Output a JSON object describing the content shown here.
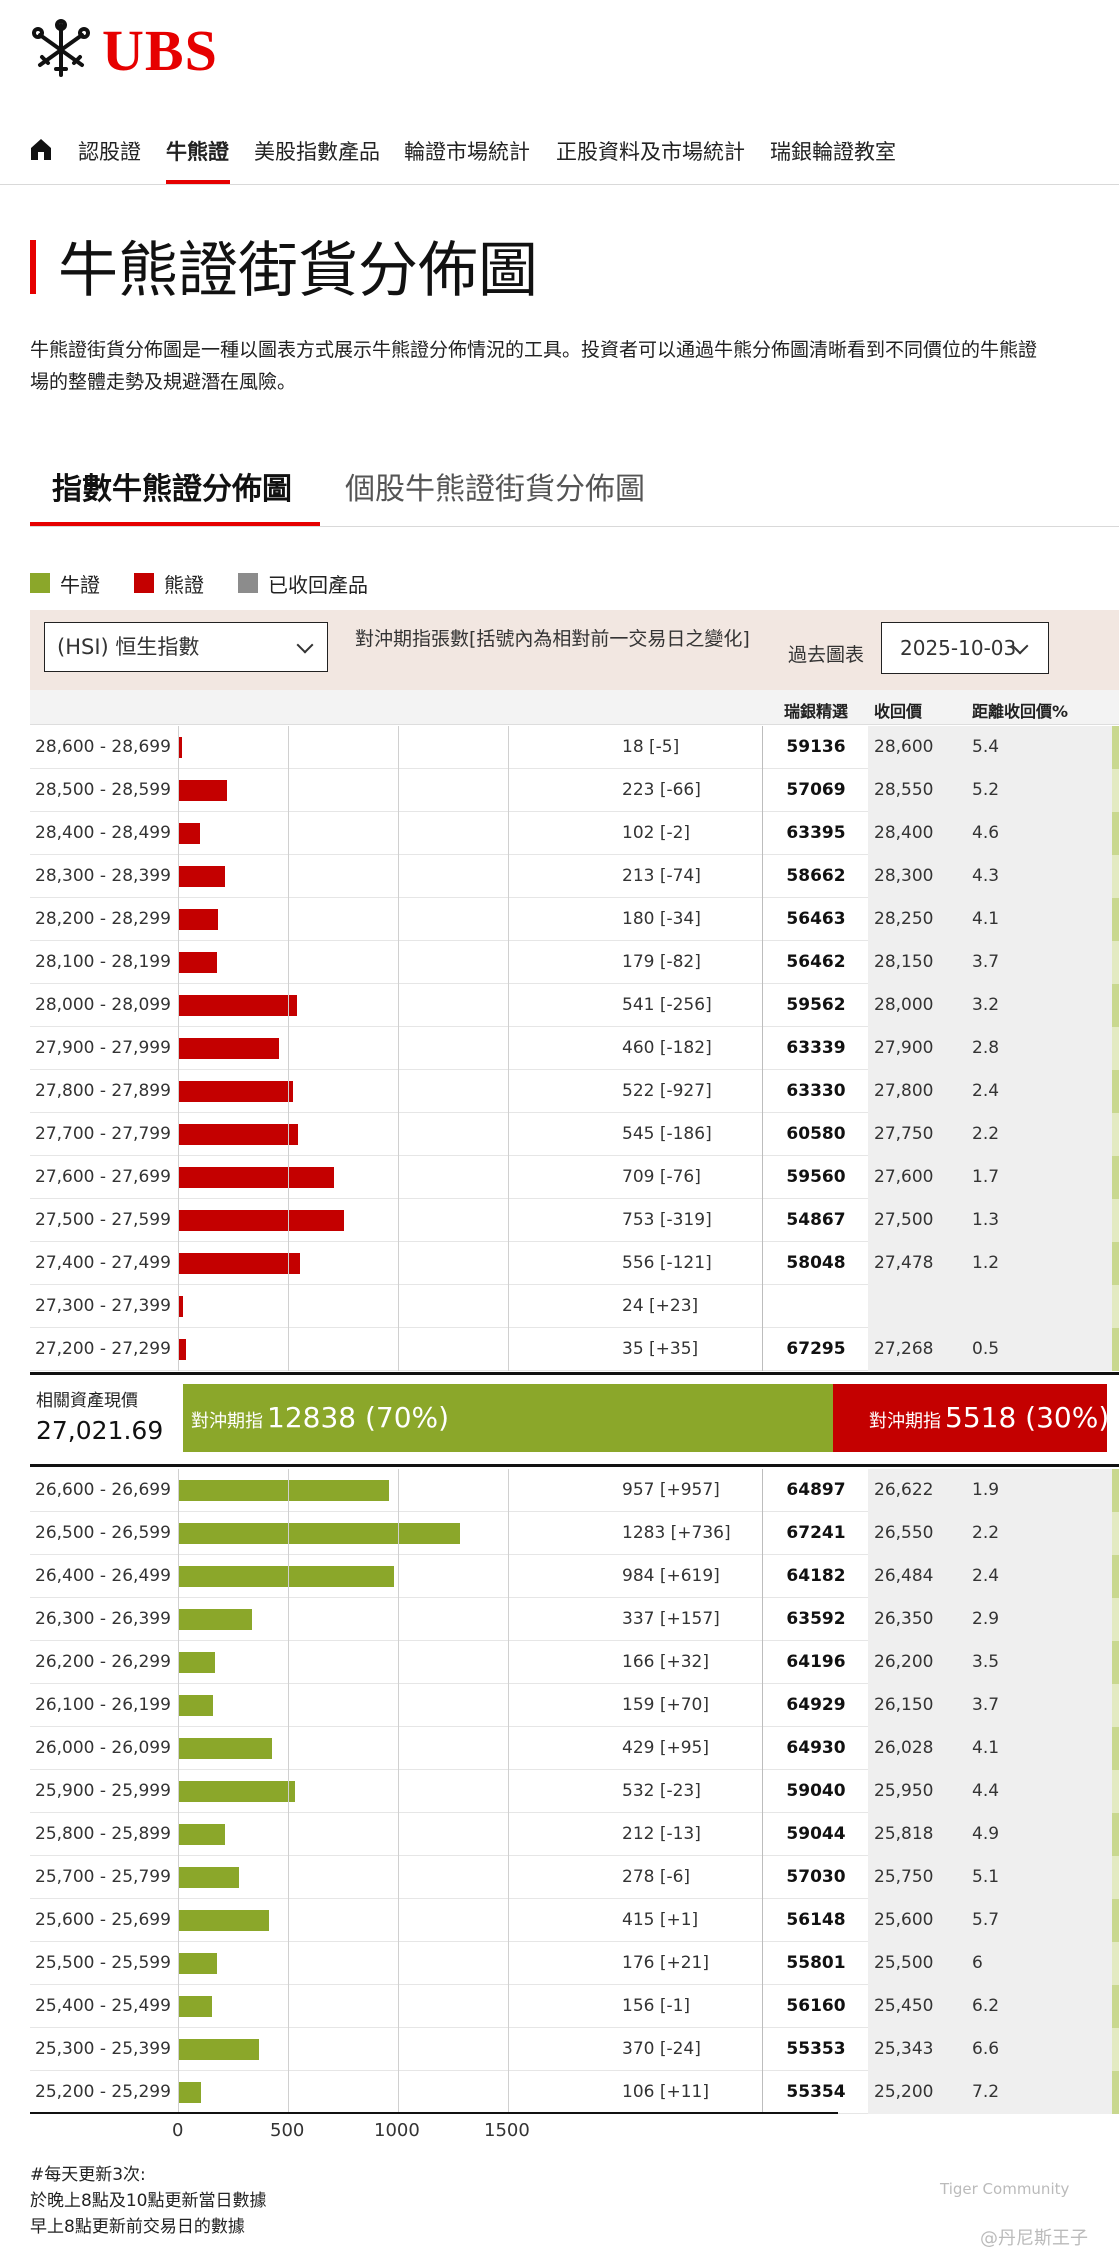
{
  "brand": {
    "name": "UBS",
    "color": "#e60000"
  },
  "nav": {
    "items": [
      "認股證",
      "牛熊證",
      "美股指數產品",
      "輪證市場統計",
      "正股資料及市場統計",
      "瑞銀輪證教室"
    ],
    "active": "牛熊證"
  },
  "page": {
    "title": "牛熊證街貨分佈圖",
    "description_line1": "牛熊證街貨分佈圖是一種以圖表方式展示牛熊證分佈情況的工具。投資者可以通過牛熊分佈圖清晰看到不同價位的牛熊證",
    "description_line2": "場的整體走勢及規避潛在風險。"
  },
  "tabs": {
    "active": "指數牛熊證分佈圖",
    "inactive": "個股牛熊證街貨分佈圖"
  },
  "legend": {
    "bull": "牛證",
    "bear": "熊證",
    "called": "已收回產品"
  },
  "colors": {
    "bull": "#8ba72a",
    "bear": "#c40000",
    "called": "#8c8c8c"
  },
  "filter": {
    "index_select": "(HSI) 恒生指數",
    "label": "對沖期指張數[括號內為相對前一交易日之變化]",
    "history_label": "過去圖表",
    "date_select": "2025-10-03"
  },
  "table_headers": {
    "code": "瑞銀精選",
    "call_price": "收回價",
    "distance": "距離收回價%"
  },
  "chart_data": {
    "type": "bar",
    "orientation": "horizontal",
    "xlim": [
      0,
      1500
    ],
    "x_ticks": [
      "0",
      "500",
      "1000",
      "1500"
    ],
    "bear_rows": [
      {
        "range": "28,600 - 28,699",
        "value": 18,
        "label": "18 [-5]",
        "code": "59136",
        "call": "28,600",
        "dist": "5.4"
      },
      {
        "range": "28,500 - 28,599",
        "value": 223,
        "label": "223 [-66]",
        "code": "57069",
        "call": "28,550",
        "dist": "5.2"
      },
      {
        "range": "28,400 - 28,499",
        "value": 102,
        "label": "102 [-2]",
        "code": "63395",
        "call": "28,400",
        "dist": "4.6"
      },
      {
        "range": "28,300 - 28,399",
        "value": 213,
        "label": "213 [-74]",
        "code": "58662",
        "call": "28,300",
        "dist": "4.3"
      },
      {
        "range": "28,200 - 28,299",
        "value": 180,
        "label": "180 [-34]",
        "code": "56463",
        "call": "28,250",
        "dist": "4.1"
      },
      {
        "range": "28,100 - 28,199",
        "value": 179,
        "label": "179 [-82]",
        "code": "56462",
        "call": "28,150",
        "dist": "3.7"
      },
      {
        "range": "28,000 - 28,099",
        "value": 541,
        "label": "541 [-256]",
        "code": "59562",
        "call": "28,000",
        "dist": "3.2"
      },
      {
        "range": "27,900 - 27,999",
        "value": 460,
        "label": "460 [-182]",
        "code": "63339",
        "call": "27,900",
        "dist": "2.8"
      },
      {
        "range": "27,800 - 27,899",
        "value": 522,
        "label": "522 [-927]",
        "code": "63330",
        "call": "27,800",
        "dist": "2.4"
      },
      {
        "range": "27,700 - 27,799",
        "value": 545,
        "label": "545 [-186]",
        "code": "60580",
        "call": "27,750",
        "dist": "2.2"
      },
      {
        "range": "27,600 - 27,699",
        "value": 709,
        "label": "709 [-76]",
        "code": "59560",
        "call": "27,600",
        "dist": "1.7"
      },
      {
        "range": "27,500 - 27,599",
        "value": 753,
        "label": "753 [-319]",
        "code": "54867",
        "call": "27,500",
        "dist": "1.3"
      },
      {
        "range": "27,400 - 27,499",
        "value": 556,
        "label": "556 [-121]",
        "code": "58048",
        "call": "27,478",
        "dist": "1.2"
      },
      {
        "range": "27,300 - 27,399",
        "value": 24,
        "label": "24 [+23]",
        "code": "",
        "call": "",
        "dist": ""
      },
      {
        "range": "27,200 - 27,299",
        "value": 35,
        "label": "35 [+35]",
        "code": "67295",
        "call": "27,268",
        "dist": "0.5"
      }
    ],
    "bull_rows": [
      {
        "range": "26,600 - 26,699",
        "value": 957,
        "label": "957 [+957]",
        "code": "64897",
        "call": "26,622",
        "dist": "1.9"
      },
      {
        "range": "26,500 - 26,599",
        "value": 1283,
        "label": "1283 [+736]",
        "code": "67241",
        "call": "26,550",
        "dist": "2.2"
      },
      {
        "range": "26,400 - 26,499",
        "value": 984,
        "label": "984 [+619]",
        "code": "64182",
        "call": "26,484",
        "dist": "2.4"
      },
      {
        "range": "26,300 - 26,399",
        "value": 337,
        "label": "337 [+157]",
        "code": "63592",
        "call": "26,350",
        "dist": "2.9"
      },
      {
        "range": "26,200 - 26,299",
        "value": 166,
        "label": "166 [+32]",
        "code": "64196",
        "call": "26,200",
        "dist": "3.5"
      },
      {
        "range": "26,100 - 26,199",
        "value": 159,
        "label": "159 [+70]",
        "code": "64929",
        "call": "26,150",
        "dist": "3.7"
      },
      {
        "range": "26,000 - 26,099",
        "value": 429,
        "label": "429 [+95]",
        "code": "64930",
        "call": "26,028",
        "dist": "4.1"
      },
      {
        "range": "25,900 - 25,999",
        "value": 532,
        "label": "532 [-23]",
        "code": "59040",
        "call": "25,950",
        "dist": "4.4"
      },
      {
        "range": "25,800 - 25,899",
        "value": 212,
        "label": "212 [-13]",
        "code": "59044",
        "call": "25,818",
        "dist": "4.9"
      },
      {
        "range": "25,700 - 25,799",
        "value": 278,
        "label": "278 [-6]",
        "code": "57030",
        "call": "25,750",
        "dist": "5.1"
      },
      {
        "range": "25,600 - 25,699",
        "value": 415,
        "label": "415 [+1]",
        "code": "56148",
        "call": "25,600",
        "dist": "5.7"
      },
      {
        "range": "25,500 - 25,599",
        "value": 176,
        "label": "176 [+21]",
        "code": "55801",
        "call": "25,500",
        "dist": "6"
      },
      {
        "range": "25,400 - 25,499",
        "value": 156,
        "label": "156 [-1]",
        "code": "56160",
        "call": "25,450",
        "dist": "6.2"
      },
      {
        "range": "25,300 - 25,399",
        "value": 370,
        "label": "370 [-24]",
        "code": "55353",
        "call": "25,343",
        "dist": "6.6"
      },
      {
        "range": "25,200 - 25,299",
        "value": 106,
        "label": "106 [+11]",
        "code": "55354",
        "call": "25,200",
        "dist": "7.2"
      }
    ]
  },
  "summary": {
    "asset_label": "相關資產現價",
    "asset_value": "27,021.69",
    "bull_label": "對沖期指",
    "bull_value": "12838 (70%)",
    "bear_label": "對沖期指",
    "bear_value": "5518 (30%)"
  },
  "footnote": {
    "line1": "#每天更新3次:",
    "line2": "於晚上8點及10點更新當日數據",
    "line3": "早上8點更新前交易日的數據"
  },
  "watermark": {
    "line1": "Tiger Community",
    "line2": "@丹尼斯王子"
  }
}
